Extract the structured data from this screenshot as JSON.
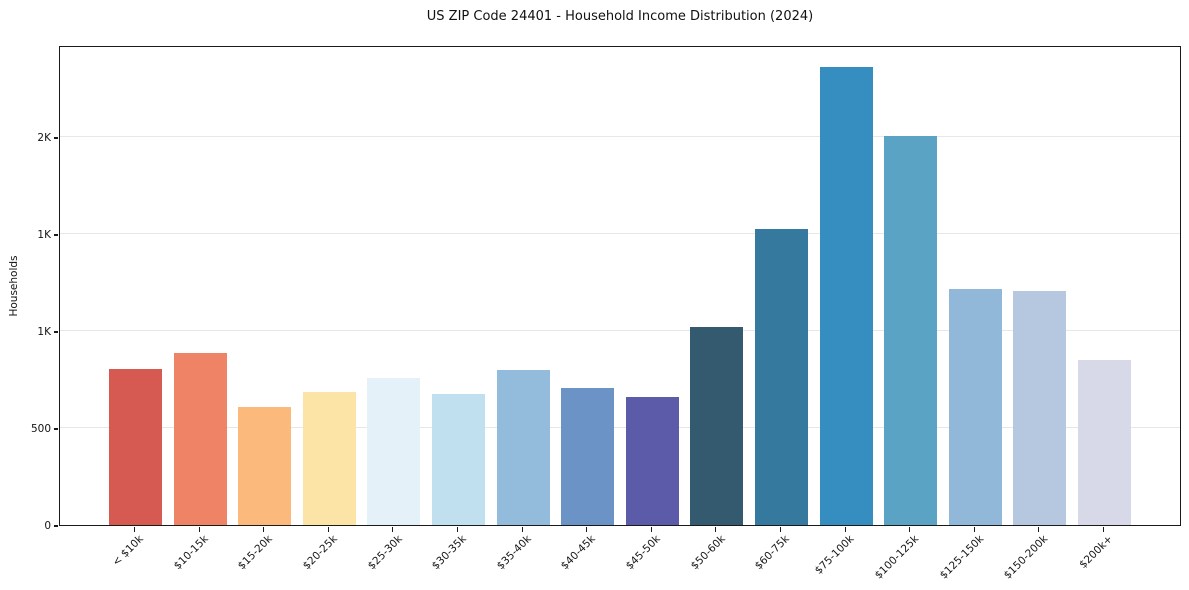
{
  "chart_data": {
    "type": "bar",
    "title": "US ZIP Code 24401 - Household Income Distribution (2024)",
    "xlabel": "",
    "ylabel": "Households",
    "legend": "none",
    "grid": "horizontal",
    "ylim": [
      0,
      2474
    ],
    "yticks": [
      {
        "value": 0,
        "label": "0"
      },
      {
        "value": 500,
        "label": "500"
      },
      {
        "value": 1000,
        "label": "1K"
      },
      {
        "value": 1500,
        "label": "1K"
      },
      {
        "value": 2000,
        "label": "2K"
      }
    ],
    "categories": [
      "< $10k",
      "$10-15k",
      "$15-20k",
      "$20-25k",
      "$25-30k",
      "$30-35k",
      "$35-40k",
      "$40-45k",
      "$45-50k",
      "$50-60k",
      "$60-75k",
      "$75-100k",
      "$100-125k",
      "$125-150k",
      "$150-200k",
      "$200k+"
    ],
    "values": [
      805,
      885,
      610,
      685,
      760,
      675,
      800,
      705,
      660,
      1020,
      1525,
      2360,
      2005,
      1215,
      1205,
      850
    ],
    "bar_colors": [
      "#d65a52",
      "#ef8366",
      "#fbb97b",
      "#fce3a6",
      "#e4f1f8",
      "#c0dfef",
      "#93bcdc",
      "#6b93c6",
      "#5b5baa",
      "#335a6e",
      "#35799e",
      "#368dbf",
      "#5ba3c4",
      "#91b8d8",
      "#b6c8e0",
      "#d8d9e8"
    ],
    "colors": {
      "background": "#ffffff",
      "spine": "#1a1a1a",
      "gridline": "#e7e7e7",
      "text": "#151515"
    }
  }
}
